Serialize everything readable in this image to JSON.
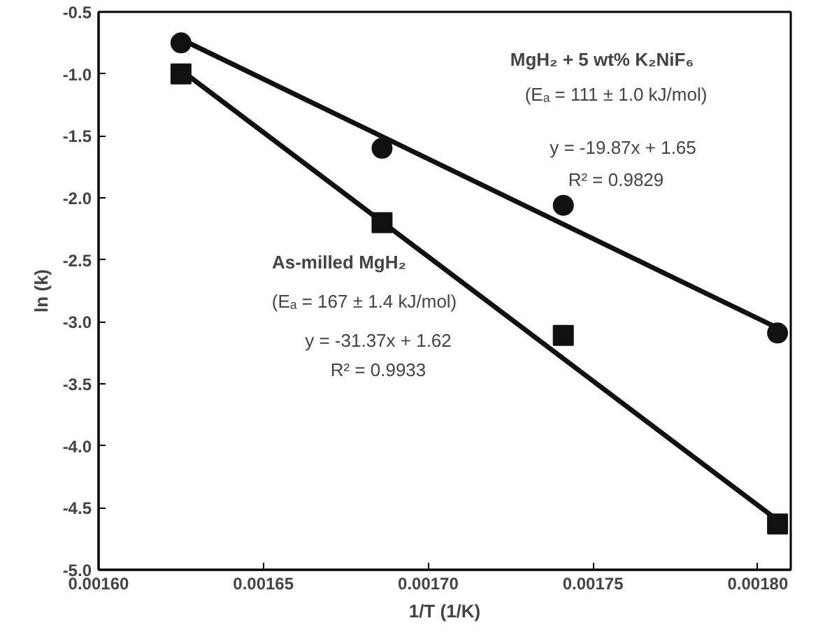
{
  "chart_data": {
    "type": "scatter",
    "xlabel": "1/T (1/K)",
    "ylabel": "ln (k)",
    "xlim": [
      0.0016,
      0.00181
    ],
    "ylim": [
      -5.0,
      -0.5
    ],
    "xticks": [
      {
        "value": 0.0016,
        "label": "0.00160"
      },
      {
        "value": 0.00165,
        "label": "0.00165"
      },
      {
        "value": 0.0017,
        "label": "0.00170"
      },
      {
        "value": 0.00175,
        "label": "0.00175"
      },
      {
        "value": 0.0018,
        "label": "0.00180"
      }
    ],
    "yticks": [
      {
        "value": -5.0,
        "label": "-5.0"
      },
      {
        "value": -4.5,
        "label": "-4.5"
      },
      {
        "value": -4.0,
        "label": "-4.0"
      },
      {
        "value": -3.5,
        "label": "-3.5"
      },
      {
        "value": -3.0,
        "label": "-3.0"
      },
      {
        "value": -2.5,
        "label": "-2.5"
      },
      {
        "value": -2.0,
        "label": "-2.0"
      },
      {
        "value": -1.5,
        "label": "-1.5"
      },
      {
        "value": -1.0,
        "label": "-1.0"
      },
      {
        "value": -0.5,
        "label": "-0.5"
      }
    ],
    "grid": false,
    "series": [
      {
        "marker": "circle",
        "color": "#111111",
        "x": [
          0.001625,
          0.001686,
          0.001741,
          0.001806
        ],
        "values": [
          -0.75,
          -1.6,
          -2.06,
          -3.09
        ]
      },
      {
        "marker": "square",
        "color": "#111111",
        "x": [
          0.001625,
          0.001686,
          0.001741,
          0.001806
        ],
        "values": [
          -1.0,
          -2.2,
          -3.11,
          -4.63
        ]
      },
      {
        "type": "line",
        "line_style": "solid",
        "color": "#111111",
        "x": [
          0.001625,
          0.001806
        ],
        "values": [
          -0.72,
          -3.05
        ]
      },
      {
        "type": "line",
        "line_style": "solid",
        "color": "#111111",
        "x": [
          0.001625,
          0.001806
        ],
        "values": [
          -0.97,
          -4.6
        ]
      }
    ],
    "annotations": [
      "MgH₂ + 5 wt% K₂NiF₆",
      "(Eₐ = 111 ± 1.0 kJ/mol)",
      "y = -19.87x + 1.65",
      "R² = 0.9829",
      "As-milled MgH₂",
      "(Eₐ = 167 ± 1.4 kJ/mol)",
      "y = -31.37x + 1.62",
      "R² = 0.9933"
    ]
  }
}
